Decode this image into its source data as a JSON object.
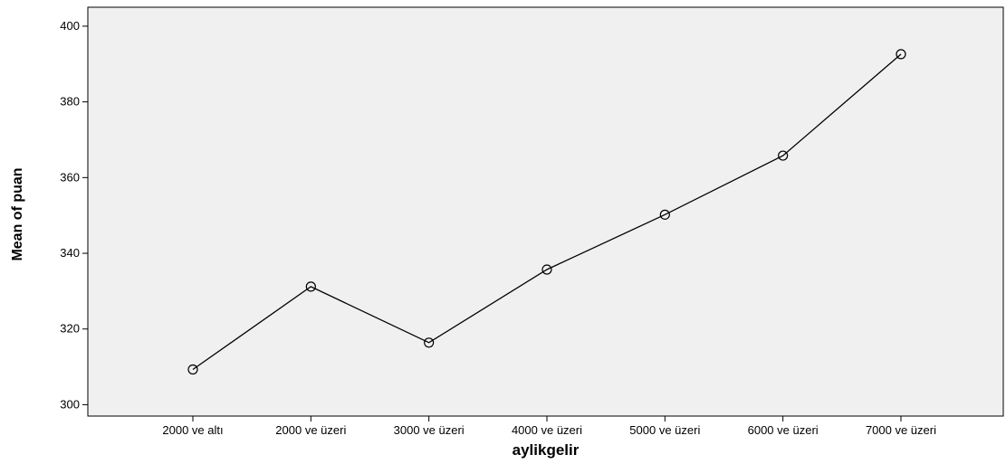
{
  "chart_data": {
    "type": "line",
    "title": "",
    "xlabel": "aylikgelir",
    "ylabel": "Mean of puan",
    "categories": [
      "2000 ve altı",
      "2000 ve üzeri",
      "3000 ve üzeri",
      "4000 ve üzeri",
      "5000 ve üzeri",
      "6000 ve üzeri",
      "7000 ve üzeri"
    ],
    "series": [
      {
        "values": [
          309.3,
          331.2,
          316.4,
          335.7,
          350.2,
          365.8,
          392.6
        ]
      }
    ],
    "ylim": [
      297,
      405
    ],
    "yticks": [
      300,
      320,
      340,
      360,
      380,
      400
    ],
    "grid": false,
    "legend": "none",
    "colors": {
      "plot_background": "#f0f0f0",
      "line": "#000000",
      "axis": "#000000"
    }
  }
}
